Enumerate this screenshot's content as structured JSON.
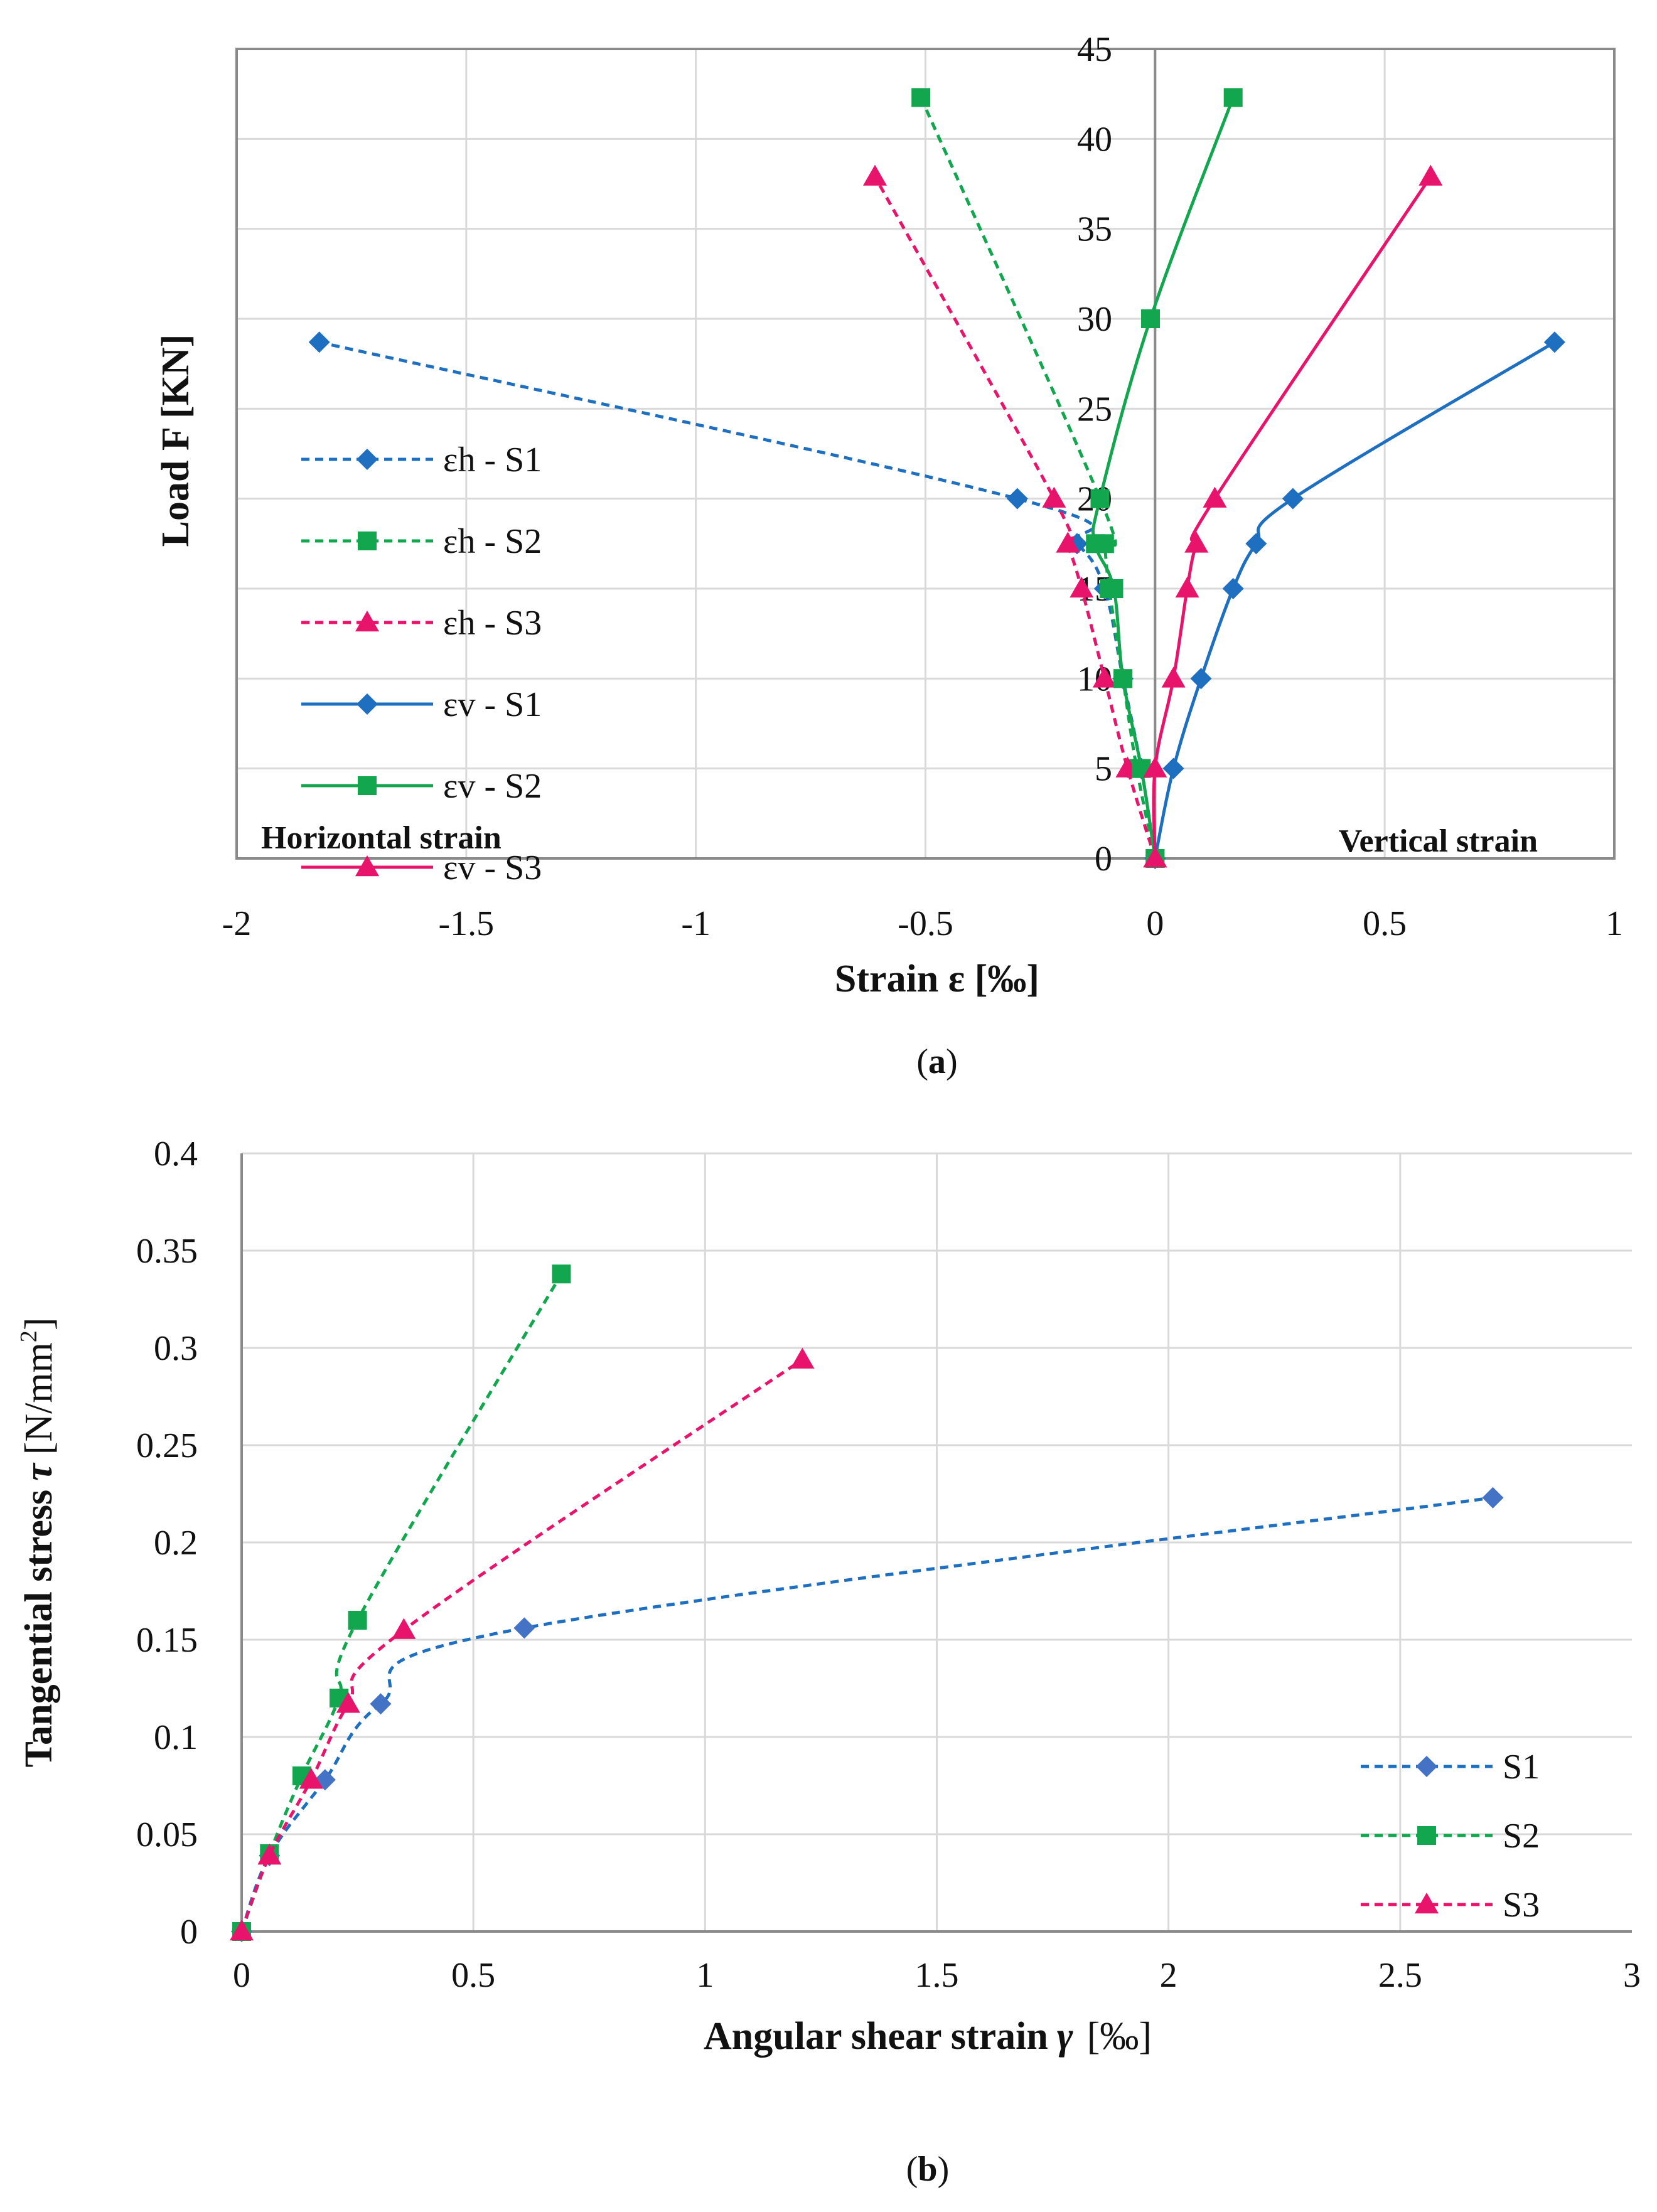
{
  "chart_data": [
    {
      "id": "a",
      "type": "line",
      "caption_label": "a",
      "xlabel": "Strain ε [‰]",
      "ylabel": "Load F [KN]",
      "xlim": [
        -2,
        1
      ],
      "ylim": [
        0,
        45
      ],
      "xticks": [
        -2,
        -1.5,
        -1,
        -0.5,
        0,
        0.5,
        1
      ],
      "yticks": [
        0,
        5,
        10,
        15,
        20,
        25,
        30,
        35,
        40,
        45
      ],
      "grid": true,
      "legend_position": "left-middle",
      "annotations": {
        "left": "Horizontal strain",
        "right": "Vertical strain"
      },
      "series": [
        {
          "name": "εh - S1",
          "color": "#1f6fc0",
          "dash": true,
          "marker": "diamond",
          "x": [
            0,
            -0.03,
            -0.07,
            -0.11,
            -0.17,
            -0.3,
            -1.82
          ],
          "y": [
            0,
            5,
            10,
            15,
            17.5,
            20,
            28.7
          ]
        },
        {
          "name": "εh - S2",
          "color": "#12a64e",
          "dash": true,
          "marker": "square",
          "x": [
            0,
            -0.04,
            -0.07,
            -0.1,
            -0.11,
            -0.12,
            -0.51
          ],
          "y": [
            0,
            5,
            10,
            15,
            17.5,
            20,
            42.3
          ]
        },
        {
          "name": "εh - S3",
          "color": "#e8146c",
          "dash": true,
          "marker": "triangle",
          "x": [
            0,
            -0.06,
            -0.11,
            -0.16,
            -0.19,
            -0.22,
            -0.61
          ],
          "y": [
            0,
            5,
            10,
            15,
            17.5,
            20,
            37.9
          ]
        },
        {
          "name": "εv - S1",
          "color": "#1f6fc0",
          "dash": false,
          "marker": "diamond",
          "x": [
            0,
            0.04,
            0.1,
            0.17,
            0.22,
            0.3,
            0.87
          ],
          "y": [
            0,
            5,
            10,
            15,
            17.5,
            20,
            28.7
          ]
        },
        {
          "name": "εv - S2",
          "color": "#12a64e",
          "dash": false,
          "marker": "square",
          "x": [
            0,
            -0.03,
            -0.07,
            -0.09,
            -0.13,
            -0.12,
            -0.01,
            0.17
          ],
          "y": [
            0,
            5,
            10,
            15,
            17.5,
            20,
            30,
            42.3
          ]
        },
        {
          "name": "εv - S3",
          "color": "#e8146c",
          "dash": false,
          "marker": "triangle",
          "x": [
            0,
            0.0,
            0.04,
            0.07,
            0.09,
            0.13,
            0.6
          ],
          "y": [
            0,
            5,
            10,
            15,
            17.5,
            20,
            37.9
          ]
        }
      ]
    },
    {
      "id": "b",
      "type": "line",
      "caption_label": "b",
      "xlabel": "Angular shear strain",
      "xlabel_symbol": "γ",
      "xlabel_unit": "[‰]",
      "ylabel": "Tangential stress",
      "ylabel_symbol": "τ",
      "ylabel_unit": "[N/mm",
      "ylabel_sup": "2",
      "ylabel_close": "]",
      "xlim": [
        0,
        3
      ],
      "ylim": [
        0,
        0.4
      ],
      "xticks": [
        0,
        0.5,
        1,
        1.5,
        2,
        2.5,
        3
      ],
      "yticks": [
        0,
        0.05,
        0.1,
        0.15,
        0.2,
        0.25,
        0.3,
        0.35,
        0.4
      ],
      "grid": true,
      "legend_position": "bottom-right",
      "series": [
        {
          "name": "S1",
          "color": "#1f6fc0",
          "marker_color": "#4472c4",
          "dash": true,
          "marker": "diamond",
          "x": [
            0,
            0.06,
            0.18,
            0.3,
            0.61,
            2.7
          ],
          "y": [
            0,
            0.039,
            0.078,
            0.117,
            0.156,
            0.223
          ]
        },
        {
          "name": "S2",
          "color": "#12a64e",
          "marker_color": "#12a64e",
          "dash": true,
          "marker": "square",
          "x": [
            0,
            0.06,
            0.13,
            0.21,
            0.25,
            0.69
          ],
          "y": [
            0,
            0.04,
            0.08,
            0.12,
            0.16,
            0.338
          ]
        },
        {
          "name": "S3",
          "color": "#e8146c",
          "marker_color": "#e8146c",
          "dash": true,
          "marker": "triangle",
          "x": [
            0,
            0.06,
            0.15,
            0.23,
            0.35,
            1.21
          ],
          "y": [
            0,
            0.039,
            0.078,
            0.117,
            0.155,
            0.294
          ]
        }
      ]
    }
  ]
}
